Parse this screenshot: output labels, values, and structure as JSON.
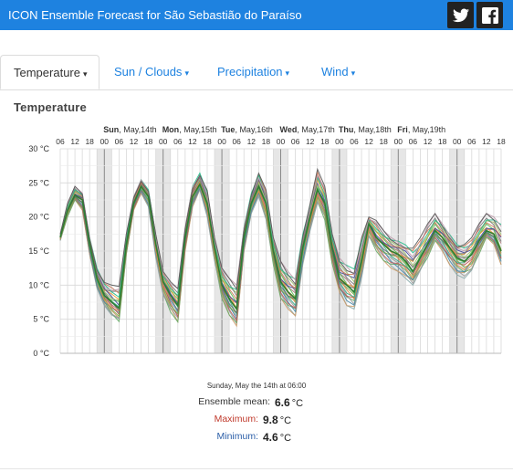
{
  "header": {
    "title": "ICON Ensemble Forecast for São Sebastião do Paraíso",
    "twitter_icon": "twitter-icon",
    "facebook_icon": "facebook-icon"
  },
  "tabs": [
    {
      "label": "Temperature",
      "active": true
    },
    {
      "label": "Sun / Clouds",
      "active": false
    },
    {
      "label": "Precipitation",
      "active": false
    },
    {
      "label": "Wind",
      "active": false
    }
  ],
  "section_title": "Temperature",
  "tooltip": {
    "date": "Sunday, May the 14th at 06:00",
    "mean_label": "Ensemble mean:",
    "mean_value": "6.6",
    "max_label": "Maximum:",
    "max_value": "9.8",
    "min_label": "Minimum:",
    "min_value": "4.6",
    "unit": "°C"
  },
  "colors": {
    "brand": "#1e82e0",
    "max_label": "#c0392b",
    "min_label": "#2c5fa8"
  },
  "chart_data": {
    "type": "line",
    "title": "",
    "ylabel": "",
    "ylim": [
      0,
      30
    ],
    "y_ticks": [
      "0 °C",
      "5 °C",
      "10 °C",
      "15 °C",
      "20 °C",
      "25 °C",
      "30 °C"
    ],
    "x_hour_labels": [
      "06",
      "12",
      "18",
      "00",
      "06",
      "12",
      "18",
      "00",
      "06",
      "12",
      "18",
      "00",
      "06",
      "12",
      "18",
      "00",
      "06",
      "12",
      "18",
      "00",
      "06",
      "12",
      "18",
      "00",
      "06",
      "12",
      "18",
      "00",
      "06",
      "12",
      "18"
    ],
    "day_labels": [
      "Sun, May,14th",
      "Mon, May,15th",
      "Tue, May,16th",
      "Wed, May,17th",
      "Thu, May,18th",
      "Fri, May,19th"
    ],
    "x_hours_from_start": [
      0,
      3,
      6,
      9,
      12,
      15,
      18,
      21,
      24,
      27,
      30,
      33,
      36,
      39,
      42,
      45,
      48,
      51,
      54,
      57,
      60,
      63,
      66,
      69,
      72,
      75,
      78,
      81,
      84,
      87,
      90,
      93,
      96,
      99,
      102,
      105,
      108,
      111,
      114,
      117,
      120,
      123,
      126,
      129,
      132,
      135,
      138,
      141,
      144,
      147,
      150,
      153,
      156,
      159,
      162,
      165,
      168,
      171,
      174,
      177,
      180
    ],
    "ensemble_mean": [
      17,
      21,
      23.2,
      22.5,
      16,
      11,
      8.5,
      7.5,
      6.6,
      16,
      22,
      24.5,
      23,
      16,
      10.5,
      8.5,
      7,
      17,
      23,
      24.8,
      22,
      15.5,
      10,
      8,
      6.5,
      17,
      22,
      24.5,
      22,
      15,
      10.5,
      9,
      8,
      15.5,
      20,
      24,
      22,
      15.5,
      11,
      10,
      9,
      13.5,
      19,
      17,
      16,
      15,
      14.5,
      13.5,
      12,
      14,
      16,
      18,
      17,
      15.5,
      14,
      13.5,
      14.5,
      16.5,
      18,
      17.5,
      15
    ],
    "ensemble_max": [
      17.5,
      22,
      24.5,
      23.5,
      17,
      12.5,
      10.5,
      10,
      9.8,
      17.5,
      23,
      25.5,
      24,
      17.5,
      12,
      10.5,
      9.5,
      18.5,
      24.5,
      26.5,
      24,
      17,
      12.5,
      11,
      10,
      18.5,
      23.5,
      26.5,
      24,
      17,
      13.5,
      12,
      11,
      17.5,
      22,
      27,
      24.5,
      17.5,
      14,
      13,
      12.5,
      17,
      20,
      19.5,
      18,
      17,
      16.5,
      16,
      15.5,
      17,
      19,
      20.5,
      19,
      17.5,
      16,
      16,
      17,
      19,
      20.5,
      20,
      19
    ],
    "ensemble_min": [
      16.5,
      20,
      22.5,
      21,
      14.5,
      9.5,
      7,
      5.5,
      4.6,
      14.5,
      21,
      23.5,
      21.5,
      14,
      8.5,
      6,
      4.5,
      15,
      21.5,
      24,
      20,
      13.5,
      8,
      5.5,
      4,
      15,
      20.5,
      23,
      19.5,
      13,
      8,
      6.5,
      5.5,
      13,
      18,
      22,
      19.5,
      13,
      9,
      7,
      6.5,
      11,
      17,
      15,
      13.5,
      12.5,
      12,
      11,
      10,
      12,
      14,
      16.5,
      15,
      13,
      11.5,
      11,
      12,
      14.5,
      17,
      16,
      13
    ]
  }
}
